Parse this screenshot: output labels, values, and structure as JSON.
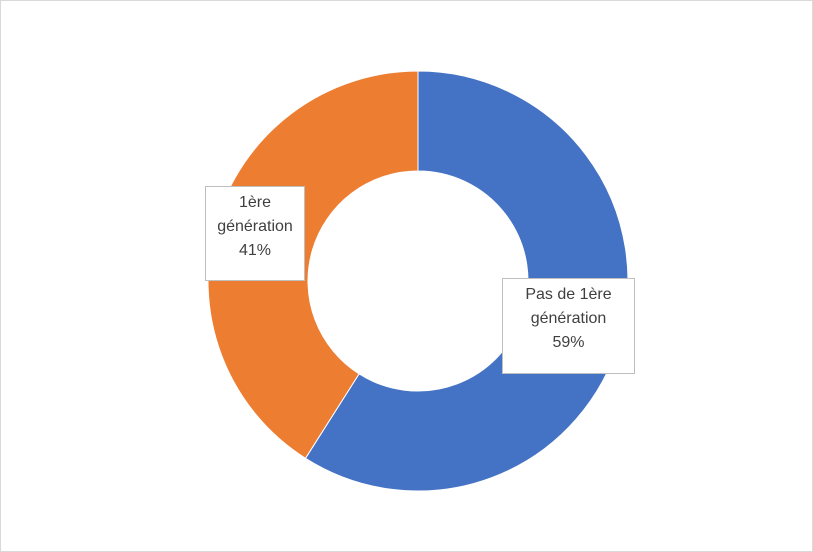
{
  "chart_data": {
    "type": "donut",
    "categories": [
      "Pas de 1ère génération",
      "1ère génération"
    ],
    "values": [
      59,
      41
    ],
    "value_labels": [
      "59%",
      "41%"
    ],
    "colors": [
      "#4472c4",
      "#ed7d31"
    ]
  }
}
